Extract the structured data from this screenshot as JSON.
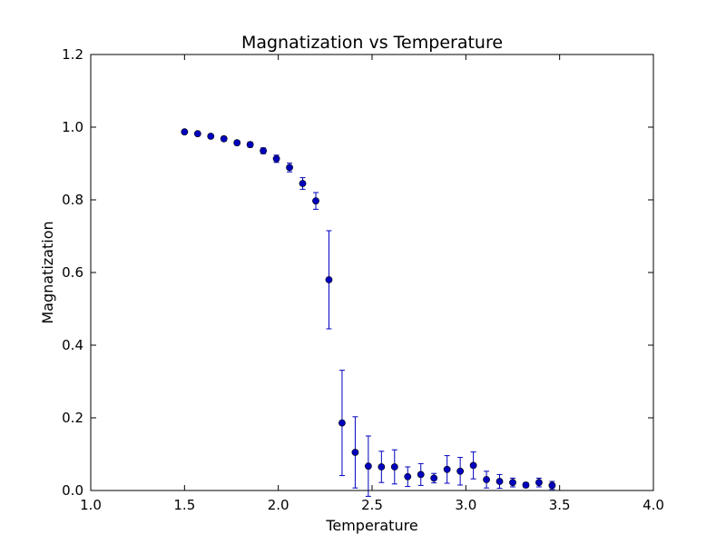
{
  "chart_data": {
    "type": "scatter",
    "title": "Magnatization vs Temperature",
    "xlabel": "Temperature",
    "ylabel": "Magnatization",
    "xlim": [
      1.0,
      4.0
    ],
    "ylim": [
      0.0,
      1.2
    ],
    "x_ticks": [
      "1.0",
      "1.5",
      "2.0",
      "2.5",
      "3.0",
      "3.5",
      "4.0"
    ],
    "y_ticks": [
      "0.0",
      "0.2",
      "0.4",
      "0.6",
      "0.8",
      "1.0",
      "1.2"
    ],
    "grid": false,
    "legend": "none",
    "colors": {
      "marker": "#0000bf",
      "errorbar": "#0000bf",
      "axes": "#000000"
    },
    "points": [
      {
        "x": 1.5,
        "y": 0.987,
        "err": 0.004
      },
      {
        "x": 1.57,
        "y": 0.982,
        "err": 0.004
      },
      {
        "x": 1.64,
        "y": 0.975,
        "err": 0.005
      },
      {
        "x": 1.71,
        "y": 0.968,
        "err": 0.006
      },
      {
        "x": 1.78,
        "y": 0.957,
        "err": 0.006
      },
      {
        "x": 1.85,
        "y": 0.952,
        "err": 0.007
      },
      {
        "x": 1.92,
        "y": 0.935,
        "err": 0.008
      },
      {
        "x": 1.99,
        "y": 0.913,
        "err": 0.01
      },
      {
        "x": 2.06,
        "y": 0.889,
        "err": 0.012
      },
      {
        "x": 2.13,
        "y": 0.845,
        "err": 0.016
      },
      {
        "x": 2.2,
        "y": 0.797,
        "err": 0.023
      },
      {
        "x": 2.27,
        "y": 0.58,
        "err": 0.135
      },
      {
        "x": 2.34,
        "y": 0.186,
        "err": 0.145
      },
      {
        "x": 2.41,
        "y": 0.105,
        "err": 0.098
      },
      {
        "x": 2.48,
        "y": 0.067,
        "err": 0.083
      },
      {
        "x": 2.55,
        "y": 0.065,
        "err": 0.043
      },
      {
        "x": 2.62,
        "y": 0.065,
        "err": 0.047
      },
      {
        "x": 2.69,
        "y": 0.038,
        "err": 0.027
      },
      {
        "x": 2.76,
        "y": 0.044,
        "err": 0.03
      },
      {
        "x": 2.83,
        "y": 0.034,
        "err": 0.013
      },
      {
        "x": 2.9,
        "y": 0.058,
        "err": 0.038
      },
      {
        "x": 2.97,
        "y": 0.053,
        "err": 0.038
      },
      {
        "x": 3.04,
        "y": 0.069,
        "err": 0.037
      },
      {
        "x": 3.11,
        "y": 0.03,
        "err": 0.023
      },
      {
        "x": 3.18,
        "y": 0.025,
        "err": 0.019
      },
      {
        "x": 3.25,
        "y": 0.022,
        "err": 0.012
      },
      {
        "x": 3.32,
        "y": 0.015,
        "err": 0.007
      },
      {
        "x": 3.39,
        "y": 0.022,
        "err": 0.012
      },
      {
        "x": 3.46,
        "y": 0.014,
        "err": 0.011
      }
    ]
  }
}
